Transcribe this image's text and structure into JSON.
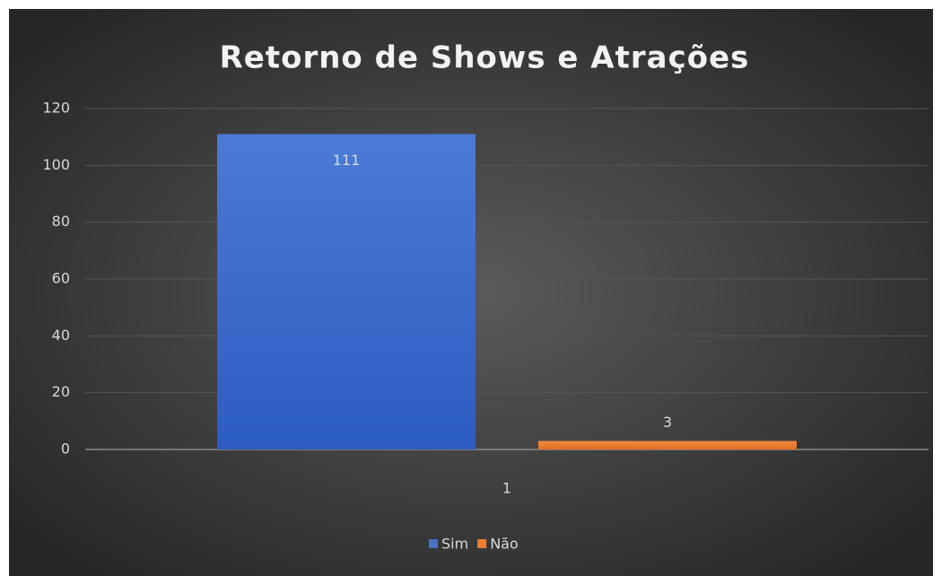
{
  "chart_data": {
    "type": "bar",
    "title": "Retorno de Shows e Atrações",
    "categories": [
      "1"
    ],
    "series": [
      {
        "name": "Sim",
        "color": "#4472c4",
        "values": [
          111
        ]
      },
      {
        "name": "Não",
        "color": "#ed7d31",
        "values": [
          3
        ]
      }
    ],
    "ylim": [
      0,
      120
    ],
    "yticks": [
      0,
      20,
      40,
      60,
      80,
      100,
      120
    ],
    "grid": true,
    "legend": "bottom"
  }
}
